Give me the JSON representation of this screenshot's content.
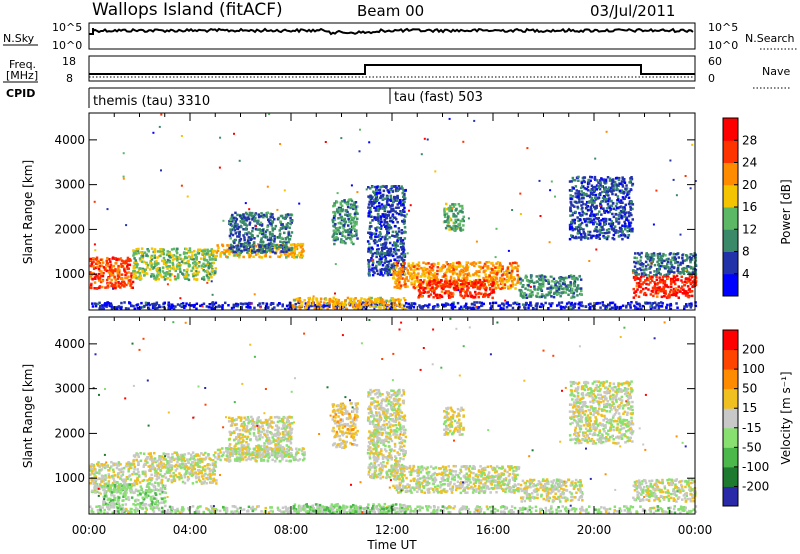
{
  "header": {
    "site": "Wallops Island (fitACF)",
    "beam": "Beam 00",
    "date": "03/Jul/2011"
  },
  "nsky_panel": {
    "left_label": "N.Sky",
    "left_ticks": [
      "10^5",
      "10^0"
    ],
    "right_label": "N.Search",
    "right_ticks": [
      "10^5",
      "10^0"
    ]
  },
  "freq_panel": {
    "left_label_1": "Freq.",
    "left_label_2": "[MHz]",
    "left_ticks": [
      "18",
      "8"
    ],
    "right_label": "Nave",
    "right_ticks": [
      "60",
      "0"
    ]
  },
  "cpid_panel": {
    "label": "CPID",
    "modes": [
      "themis (tau) 3310",
      "tau (fast) 503"
    ]
  },
  "colors": {
    "power_scale": [
      "#0000ff",
      "#2233aa",
      "#3a8a6a",
      "#5db865",
      "#f4c400",
      "#ff8c00",
      "#ff3300",
      "#ff0000"
    ],
    "velocity_scale": [
      "#2a2aa8",
      "#1e7a2e",
      "#4cb84c",
      "#88e070",
      "#c8c8c8",
      "#f0c020",
      "#ff8c00",
      "#ff4400",
      "#ff0000"
    ]
  },
  "chart_data": [
    {
      "type": "heatmap",
      "title": "",
      "xlabel": "",
      "ylabel": "Slant Range [km]",
      "xlim": [
        0,
        24
      ],
      "ylim": [
        200,
        4600
      ],
      "x_ticks": [
        "00:00",
        "04:00",
        "08:00",
        "12:00",
        "16:00",
        "20:00",
        "00:00"
      ],
      "y_ticks": [
        "1000",
        "2000",
        "3000",
        "4000"
      ],
      "colorbar_label": "Power [dB]",
      "colorbar_ticks": [
        "28",
        "24",
        "20",
        "16",
        "12",
        "8",
        "4"
      ],
      "colorbar_range": [
        0,
        30
      ],
      "scatter_regions": [
        {
          "t": [
            0.0,
            1.7
          ],
          "r": [
            700,
            1400
          ],
          "value": 24
        },
        {
          "t": [
            1.7,
            5.0
          ],
          "r": [
            900,
            1600
          ],
          "value": 14
        },
        {
          "t": [
            5.0,
            8.5
          ],
          "r": [
            1400,
            1700
          ],
          "value": 18
        },
        {
          "t": [
            5.5,
            8.0
          ],
          "r": [
            1500,
            2400
          ],
          "value": 8
        },
        {
          "t": [
            9.6,
            10.6
          ],
          "r": [
            1700,
            2700
          ],
          "value": 10
        },
        {
          "t": [
            11.0,
            12.5
          ],
          "r": [
            1000,
            3000
          ],
          "value": 6
        },
        {
          "t": [
            12.0,
            17.0
          ],
          "r": [
            700,
            1300
          ],
          "value": 20
        },
        {
          "t": [
            13.0,
            16.0
          ],
          "r": [
            500,
            900
          ],
          "value": 26
        },
        {
          "t": [
            14.0,
            14.8
          ],
          "r": [
            2000,
            2600
          ],
          "value": 12
        },
        {
          "t": [
            17.0,
            19.5
          ],
          "r": [
            500,
            1000
          ],
          "value": 10
        },
        {
          "t": [
            19.0,
            21.5
          ],
          "r": [
            1800,
            3200
          ],
          "value": 6
        },
        {
          "t": [
            21.5,
            24.0
          ],
          "r": [
            500,
            1000
          ],
          "value": 26
        },
        {
          "t": [
            21.5,
            24.0
          ],
          "r": [
            1000,
            1500
          ],
          "value": 8
        },
        {
          "t": [
            0.0,
            24.0
          ],
          "r": [
            250,
            400
          ],
          "value": 4
        },
        {
          "t": [
            8.0,
            12.5
          ],
          "r": [
            250,
            500
          ],
          "value": 18
        }
      ]
    },
    {
      "type": "heatmap",
      "title": "",
      "xlabel": "Time UT",
      "ylabel": "Slant Range [km]",
      "xlim": [
        0,
        24
      ],
      "ylim": [
        200,
        4600
      ],
      "x_ticks": [
        "00:00",
        "04:00",
        "08:00",
        "12:00",
        "16:00",
        "20:00",
        "00:00"
      ],
      "y_ticks": [
        "1000",
        "2000",
        "3000",
        "4000"
      ],
      "colorbar_label": "Velocity [m s⁻¹]",
      "colorbar_ticks": [
        "200",
        "100",
        "50",
        "15",
        "-15",
        "-50",
        "-100",
        "-200"
      ],
      "colorbar_range": [
        -250,
        250
      ],
      "scatter_regions": [
        {
          "t": [
            0.0,
            1.7
          ],
          "r": [
            700,
            1400
          ],
          "value": 0
        },
        {
          "t": [
            0.5,
            3.0
          ],
          "r": [
            400,
            900
          ],
          "value": -40
        },
        {
          "t": [
            1.7,
            5.0
          ],
          "r": [
            900,
            1600
          ],
          "value": 0
        },
        {
          "t": [
            5.0,
            8.5
          ],
          "r": [
            1400,
            1700
          ],
          "value": -20
        },
        {
          "t": [
            5.5,
            8.0
          ],
          "r": [
            1500,
            2400
          ],
          "value": 0
        },
        {
          "t": [
            9.6,
            10.6
          ],
          "r": [
            1700,
            2700
          ],
          "value": 40
        },
        {
          "t": [
            11.0,
            12.5
          ],
          "r": [
            1000,
            3000
          ],
          "value": 0
        },
        {
          "t": [
            12.0,
            17.0
          ],
          "r": [
            700,
            1300
          ],
          "value": 0
        },
        {
          "t": [
            14.0,
            14.8
          ],
          "r": [
            2000,
            2600
          ],
          "value": 0
        },
        {
          "t": [
            17.0,
            19.5
          ],
          "r": [
            500,
            1000
          ],
          "value": 5
        },
        {
          "t": [
            19.0,
            21.5
          ],
          "r": [
            1800,
            3200
          ],
          "value": 0
        },
        {
          "t": [
            21.5,
            24.0
          ],
          "r": [
            500,
            1000
          ],
          "value": 0
        },
        {
          "t": [
            0.0,
            24.0
          ],
          "r": [
            250,
            400
          ],
          "value": -30
        },
        {
          "t": [
            8.0,
            12.5
          ],
          "r": [
            250,
            450
          ],
          "value": -60
        }
      ]
    }
  ]
}
